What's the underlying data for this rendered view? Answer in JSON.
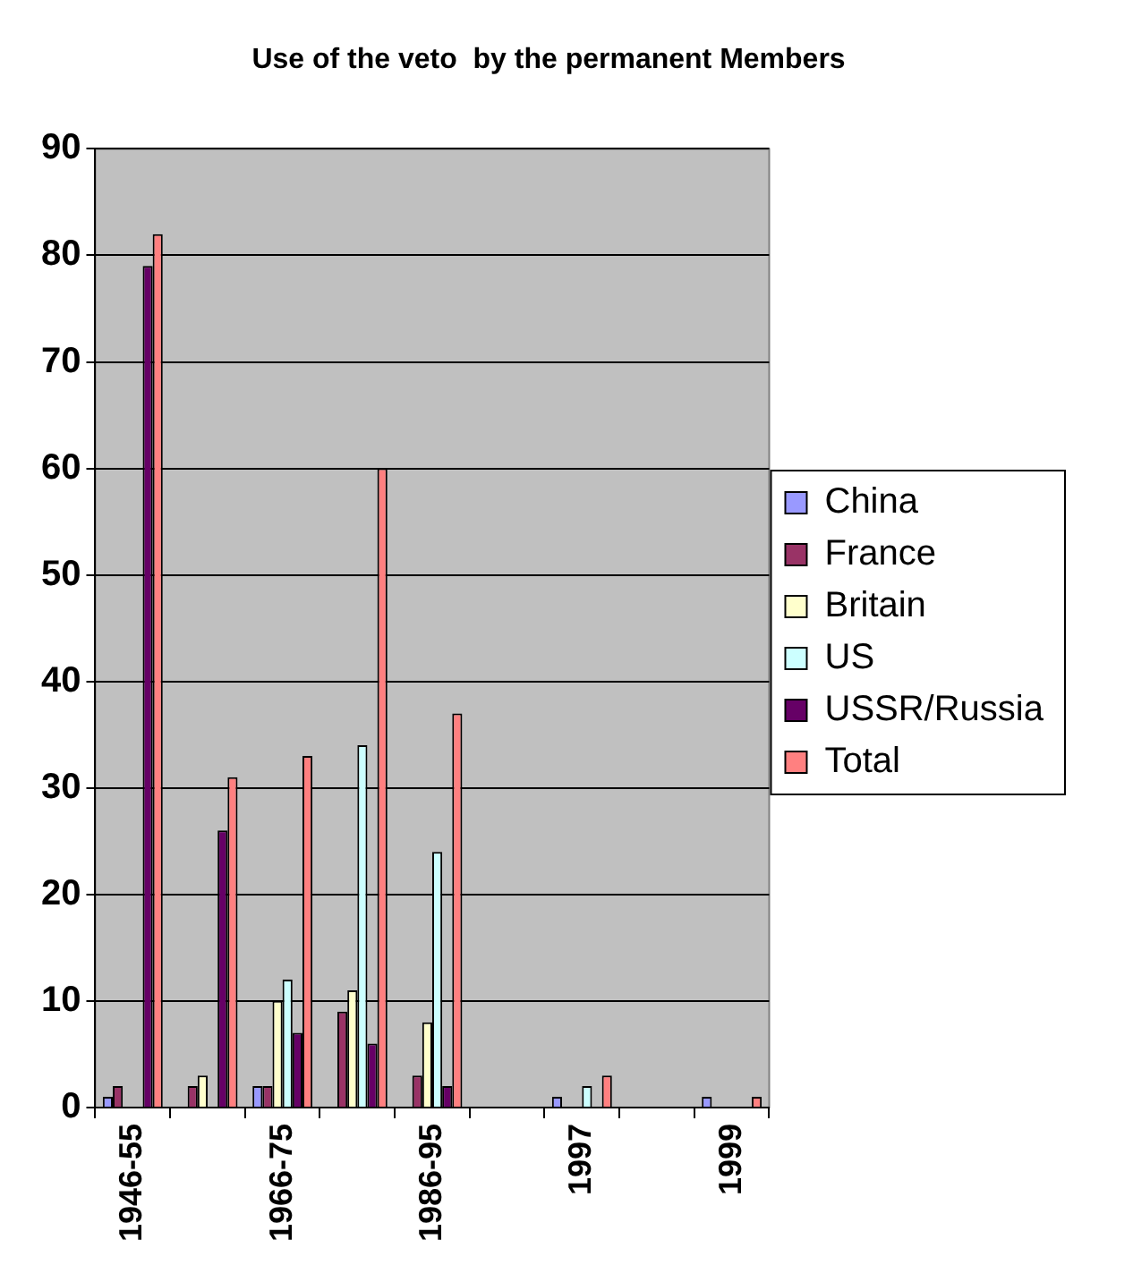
{
  "chart_data": {
    "type": "bar",
    "title": "Use of the veto  by the permanent Members",
    "categories": [
      "1946-55",
      null,
      "1966-75",
      null,
      "1986-95",
      null,
      "1997",
      null,
      "1999"
    ],
    "series": [
      {
        "name": "China",
        "color": "#9999ff",
        "values": [
          1,
          0,
          2,
          0,
          0,
          0,
          1,
          0,
          1
        ]
      },
      {
        "name": "France",
        "color": "#993366",
        "values": [
          2,
          2,
          2,
          9,
          3,
          0,
          0,
          0,
          0
        ]
      },
      {
        "name": "Britain",
        "color": "#ffffcc",
        "values": [
          0,
          3,
          10,
          11,
          8,
          0,
          0,
          0,
          0
        ]
      },
      {
        "name": "US",
        "color": "#ccffff",
        "values": [
          0,
          0,
          12,
          34,
          24,
          0,
          2,
          0,
          0
        ]
      },
      {
        "name": "USSR/Russia",
        "color": "#660066",
        "values": [
          79,
          26,
          7,
          6,
          2,
          0,
          0,
          0,
          0
        ]
      },
      {
        "name": "Total",
        "color": "#ff8080",
        "values": [
          82,
          31,
          33,
          60,
          37,
          0,
          3,
          0,
          1
        ]
      }
    ],
    "ylim": [
      0,
      90
    ],
    "yticks": [
      0,
      10,
      20,
      30,
      40,
      50,
      60,
      70,
      80,
      90
    ],
    "grid": "y",
    "legend": "right"
  }
}
